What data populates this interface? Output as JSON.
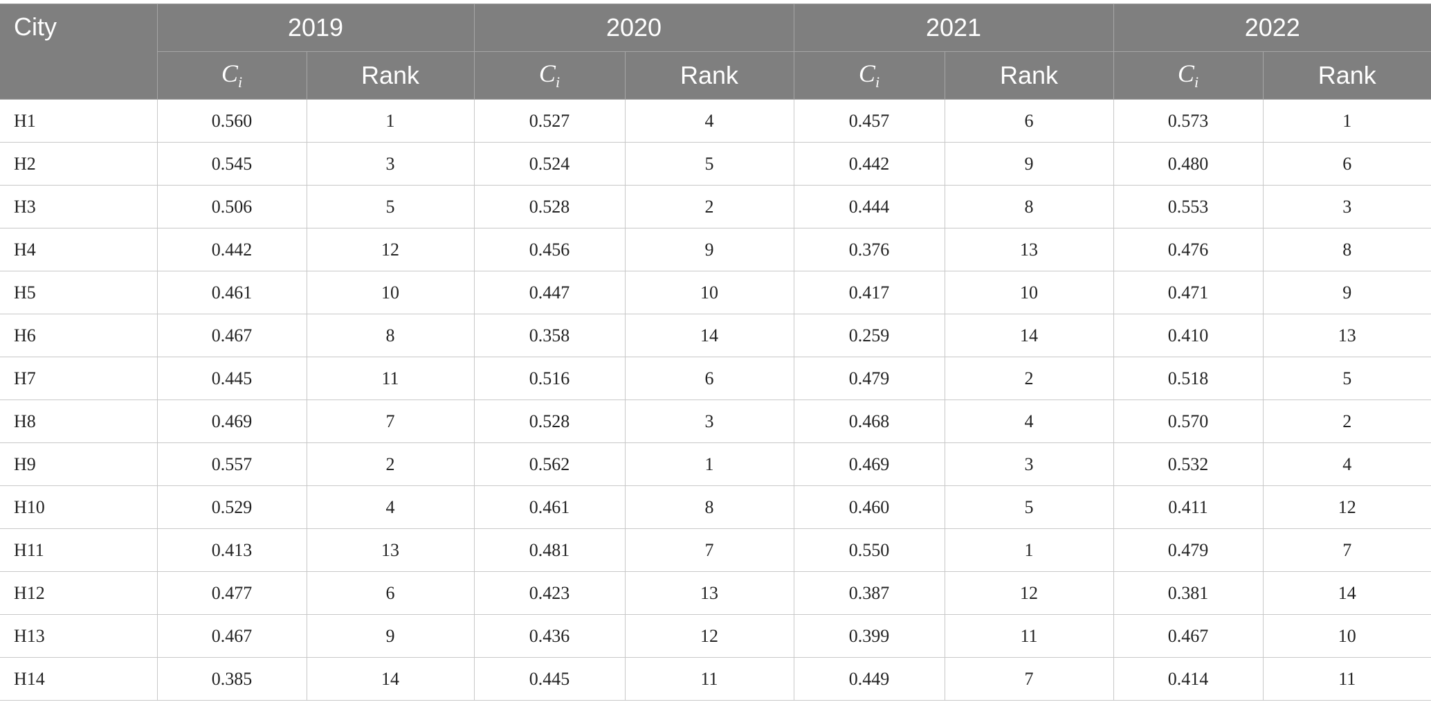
{
  "table": {
    "header": {
      "city": "City",
      "years": [
        "2019",
        "2020",
        "2021",
        "2022"
      ],
      "subheaders": [
        {
          "symbol": "C",
          "subscript": "i"
        },
        "Rank",
        {
          "symbol": "C",
          "subscript": "i"
        },
        "Rank",
        {
          "symbol": "C",
          "subscript": "i"
        },
        "Rank",
        {
          "symbol": "C",
          "subscript": "i"
        },
        "Rank"
      ]
    },
    "rows": [
      [
        "H1",
        "0.560",
        1,
        "0.527",
        4,
        "0.457",
        6,
        "0.573",
        1
      ],
      [
        "H2",
        "0.545",
        3,
        "0.524",
        5,
        "0.442",
        9,
        "0.480",
        6
      ],
      [
        "H3",
        "0.506",
        5,
        "0.528",
        2,
        "0.444",
        8,
        "0.553",
        3
      ],
      [
        "H4",
        "0.442",
        12,
        "0.456",
        9,
        "0.376",
        13,
        "0.476",
        8
      ],
      [
        "H5",
        "0.461",
        10,
        "0.447",
        10,
        "0.417",
        10,
        "0.471",
        9
      ],
      [
        "H6",
        "0.467",
        8,
        "0.358",
        14,
        "0.259",
        14,
        "0.410",
        13
      ],
      [
        "H7",
        "0.445",
        11,
        "0.516",
        6,
        "0.479",
        2,
        "0.518",
        5
      ],
      [
        "H8",
        "0.469",
        7,
        "0.528",
        3,
        "0.468",
        4,
        "0.570",
        2
      ],
      [
        "H9",
        "0.557",
        2,
        "0.562",
        1,
        "0.469",
        3,
        "0.532",
        4
      ],
      [
        "H10",
        "0.529",
        4,
        "0.461",
        8,
        "0.460",
        5,
        "0.411",
        12
      ],
      [
        "H11",
        "0.413",
        13,
        "0.481",
        7,
        "0.550",
        1,
        "0.479",
        7
      ],
      [
        "H12",
        "0.477",
        6,
        "0.423",
        13,
        "0.387",
        12,
        "0.381",
        14
      ],
      [
        "H13",
        "0.467",
        9,
        "0.436",
        12,
        "0.399",
        11,
        "0.467",
        10
      ],
      [
        "H14",
        "0.385",
        14,
        "0.445",
        11,
        "0.449",
        7,
        "0.414",
        11
      ]
    ]
  }
}
